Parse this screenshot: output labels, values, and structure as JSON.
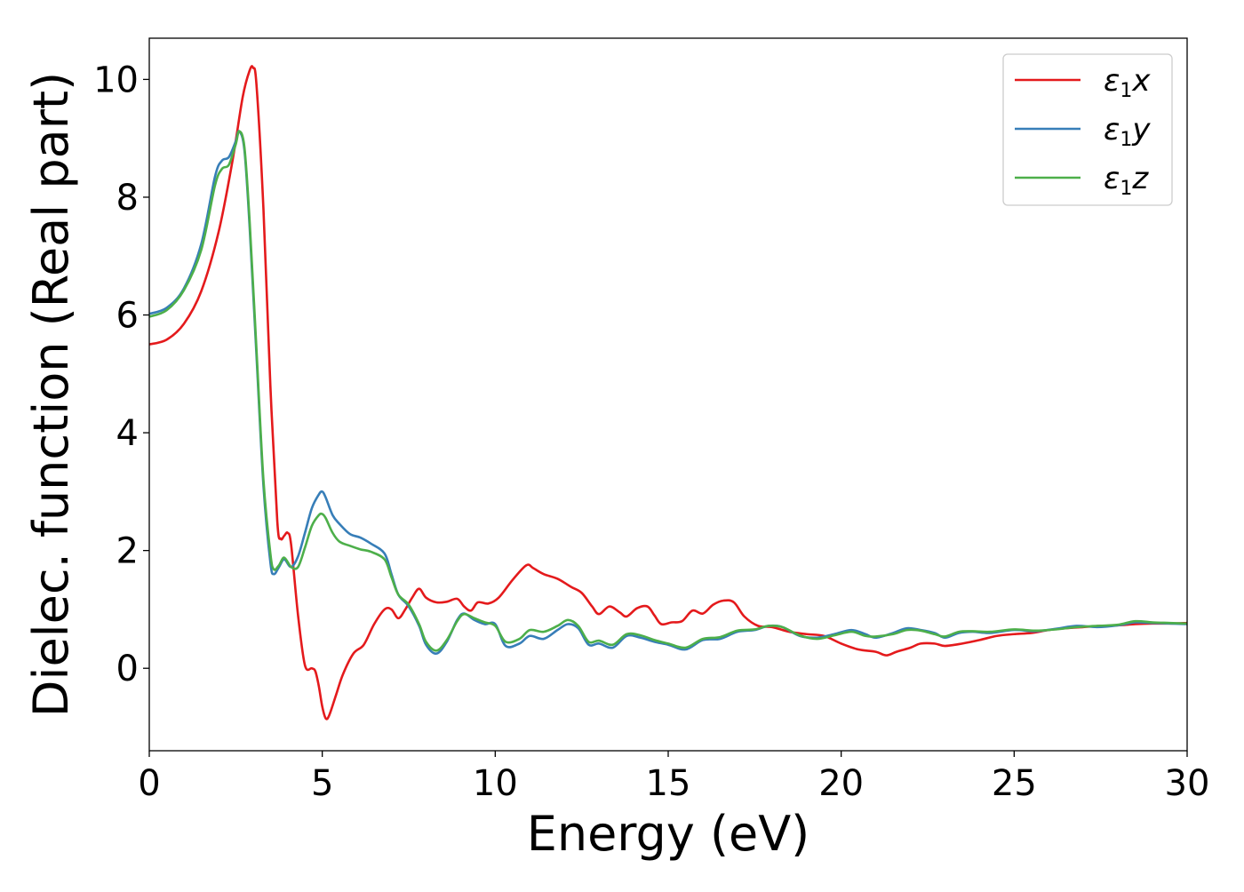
{
  "chart_data": {
    "type": "line",
    "title": "",
    "xlabel": "Energy (eV)",
    "ylabel": "Dielec. function (Real part)",
    "xlim": [
      0,
      30
    ],
    "ylim": [
      -1.4,
      10.7
    ],
    "xticks": [
      0,
      5,
      10,
      15,
      20,
      25,
      30
    ],
    "xtick_labels": [
      "0",
      "5",
      "10",
      "15",
      "20",
      "25",
      "30"
    ],
    "yticks": [
      0,
      2,
      4,
      6,
      8,
      10
    ],
    "ytick_labels": [
      "0",
      "2",
      "4",
      "6",
      "8",
      "10"
    ],
    "grid": false,
    "legend_position": "top-right",
    "series": [
      {
        "name": "ε1x",
        "legend_base": "ε",
        "legend_sub": "1",
        "legend_var": "x",
        "color": "#e41a1c",
        "x": [
          0,
          0.5,
          1.0,
          1.5,
          2.0,
          2.4,
          2.7,
          2.9,
          3.0,
          3.1,
          3.3,
          3.5,
          3.7,
          3.8,
          3.9,
          4.0,
          4.1,
          4.3,
          4.5,
          4.7,
          4.8,
          4.9,
          5.0,
          5.1,
          5.2,
          5.4,
          5.6,
          5.9,
          6.2,
          6.5,
          6.8,
          7.0,
          7.2,
          7.4,
          7.6,
          7.8,
          8.0,
          8.3,
          8.6,
          8.9,
          9.1,
          9.3,
          9.5,
          9.8,
          10.1,
          10.5,
          10.9,
          11.1,
          11.4,
          11.8,
          12.2,
          12.5,
          12.8,
          13.0,
          13.3,
          13.6,
          13.8,
          14.1,
          14.4,
          14.6,
          14.8,
          15.1,
          15.4,
          15.7,
          16.0,
          16.3,
          16.6,
          16.9,
          17.2,
          17.6,
          18.0,
          18.5,
          19.0,
          19.5,
          20.0,
          20.5,
          21.0,
          21.3,
          21.6,
          22.0,
          22.3,
          22.7,
          23.0,
          23.5,
          24.0,
          24.5,
          25.0,
          25.5,
          26.0,
          26.5,
          27.0,
          27.5,
          28.0,
          28.5,
          29.0,
          29.5,
          30.0
        ],
        "y": [
          5.5,
          5.58,
          5.85,
          6.4,
          7.4,
          8.6,
          9.7,
          10.15,
          10.2,
          9.9,
          7.8,
          4.8,
          2.5,
          2.2,
          2.25,
          2.3,
          2.1,
          0.9,
          0.05,
          0.0,
          -0.05,
          -0.3,
          -0.65,
          -0.85,
          -0.8,
          -0.45,
          -0.1,
          0.25,
          0.4,
          0.75,
          1.0,
          1.0,
          0.85,
          1.0,
          1.2,
          1.35,
          1.2,
          1.12,
          1.13,
          1.18,
          1.05,
          0.98,
          1.12,
          1.1,
          1.2,
          1.5,
          1.75,
          1.7,
          1.6,
          1.52,
          1.38,
          1.28,
          1.05,
          0.92,
          1.05,
          0.95,
          0.88,
          1.02,
          1.05,
          0.9,
          0.75,
          0.78,
          0.8,
          0.98,
          0.93,
          1.08,
          1.15,
          1.12,
          0.88,
          0.72,
          0.7,
          0.62,
          0.58,
          0.55,
          0.42,
          0.32,
          0.28,
          0.22,
          0.28,
          0.35,
          0.42,
          0.42,
          0.38,
          0.42,
          0.48,
          0.55,
          0.58,
          0.6,
          0.65,
          0.68,
          0.7,
          0.72,
          0.73,
          0.75,
          0.76,
          0.76,
          0.77
        ]
      },
      {
        "name": "ε1y",
        "legend_base": "ε",
        "legend_sub": "1",
        "legend_var": "y",
        "color": "#377eb8",
        "x": [
          0,
          0.5,
          1.0,
          1.5,
          1.9,
          2.1,
          2.3,
          2.5,
          2.6,
          2.75,
          2.9,
          3.1,
          3.3,
          3.5,
          3.6,
          3.75,
          3.9,
          4.1,
          4.3,
          4.5,
          4.7,
          4.9,
          5.0,
          5.1,
          5.3,
          5.5,
          5.8,
          6.1,
          6.4,
          6.8,
          7.0,
          7.2,
          7.5,
          7.8,
          8.0,
          8.3,
          8.6,
          8.9,
          9.1,
          9.4,
          9.7,
          10.0,
          10.3,
          10.7,
          11.0,
          11.4,
          11.8,
          12.1,
          12.4,
          12.7,
          13.0,
          13.4,
          13.8,
          14.2,
          14.6,
          15.0,
          15.5,
          16.0,
          16.5,
          17.0,
          17.5,
          17.9,
          18.3,
          18.8,
          19.3,
          19.8,
          20.3,
          20.7,
          21.0,
          21.5,
          21.9,
          22.3,
          22.7,
          23.0,
          23.4,
          23.8,
          24.3,
          25.0,
          25.6,
          26.2,
          26.8,
          27.4,
          28.0,
          28.5,
          29.0,
          29.5,
          30.0
        ],
        "y": [
          6.02,
          6.12,
          6.45,
          7.2,
          8.35,
          8.62,
          8.68,
          8.95,
          9.12,
          8.8,
          7.5,
          5.3,
          3.1,
          1.8,
          1.6,
          1.72,
          1.85,
          1.72,
          1.9,
          2.3,
          2.72,
          2.95,
          3.0,
          2.9,
          2.6,
          2.45,
          2.28,
          2.22,
          2.12,
          1.95,
          1.6,
          1.25,
          1.05,
          0.72,
          0.4,
          0.25,
          0.45,
          0.82,
          0.93,
          0.82,
          0.75,
          0.75,
          0.38,
          0.42,
          0.55,
          0.5,
          0.65,
          0.75,
          0.68,
          0.4,
          0.42,
          0.35,
          0.55,
          0.52,
          0.45,
          0.4,
          0.32,
          0.48,
          0.5,
          0.62,
          0.65,
          0.72,
          0.7,
          0.55,
          0.52,
          0.58,
          0.65,
          0.58,
          0.52,
          0.6,
          0.68,
          0.65,
          0.6,
          0.52,
          0.6,
          0.62,
          0.6,
          0.65,
          0.63,
          0.67,
          0.72,
          0.7,
          0.73,
          0.78,
          0.77,
          0.76,
          0.75
        ]
      },
      {
        "name": "ε1z",
        "legend_base": "ε",
        "legend_sub": "1",
        "legend_var": "z",
        "color": "#4daf4a",
        "x": [
          0,
          0.5,
          1.0,
          1.5,
          1.9,
          2.1,
          2.3,
          2.5,
          2.6,
          2.75,
          2.9,
          3.1,
          3.3,
          3.5,
          3.6,
          3.75,
          3.9,
          4.1,
          4.3,
          4.5,
          4.7,
          4.9,
          5.0,
          5.1,
          5.3,
          5.5,
          5.8,
          6.1,
          6.4,
          6.8,
          7.0,
          7.2,
          7.5,
          7.8,
          8.0,
          8.3,
          8.6,
          8.9,
          9.1,
          9.4,
          9.7,
          10.0,
          10.3,
          10.7,
          11.0,
          11.4,
          11.8,
          12.1,
          12.4,
          12.7,
          13.0,
          13.4,
          13.8,
          14.2,
          14.6,
          15.0,
          15.5,
          16.0,
          16.5,
          17.0,
          17.5,
          17.9,
          18.3,
          18.8,
          19.3,
          19.8,
          20.3,
          20.7,
          21.0,
          21.5,
          21.9,
          22.3,
          22.7,
          23.0,
          23.4,
          23.8,
          24.3,
          25.0,
          25.6,
          26.2,
          26.8,
          27.4,
          28.0,
          28.5,
          29.0,
          29.5,
          30.0
        ],
        "y": [
          5.97,
          6.08,
          6.42,
          7.1,
          8.2,
          8.48,
          8.55,
          8.9,
          9.12,
          8.85,
          7.6,
          5.4,
          3.2,
          1.95,
          1.68,
          1.75,
          1.88,
          1.72,
          1.72,
          2.05,
          2.42,
          2.6,
          2.62,
          2.55,
          2.3,
          2.15,
          2.08,
          2.02,
          1.98,
          1.85,
          1.55,
          1.25,
          1.08,
          0.75,
          0.45,
          0.3,
          0.48,
          0.8,
          0.92,
          0.85,
          0.78,
          0.72,
          0.45,
          0.5,
          0.65,
          0.62,
          0.72,
          0.82,
          0.72,
          0.45,
          0.47,
          0.4,
          0.58,
          0.56,
          0.48,
          0.42,
          0.35,
          0.5,
          0.53,
          0.64,
          0.66,
          0.72,
          0.7,
          0.56,
          0.5,
          0.56,
          0.62,
          0.55,
          0.54,
          0.58,
          0.65,
          0.64,
          0.58,
          0.54,
          0.62,
          0.63,
          0.62,
          0.66,
          0.64,
          0.66,
          0.7,
          0.72,
          0.74,
          0.8,
          0.78,
          0.77,
          0.76
        ]
      }
    ]
  }
}
